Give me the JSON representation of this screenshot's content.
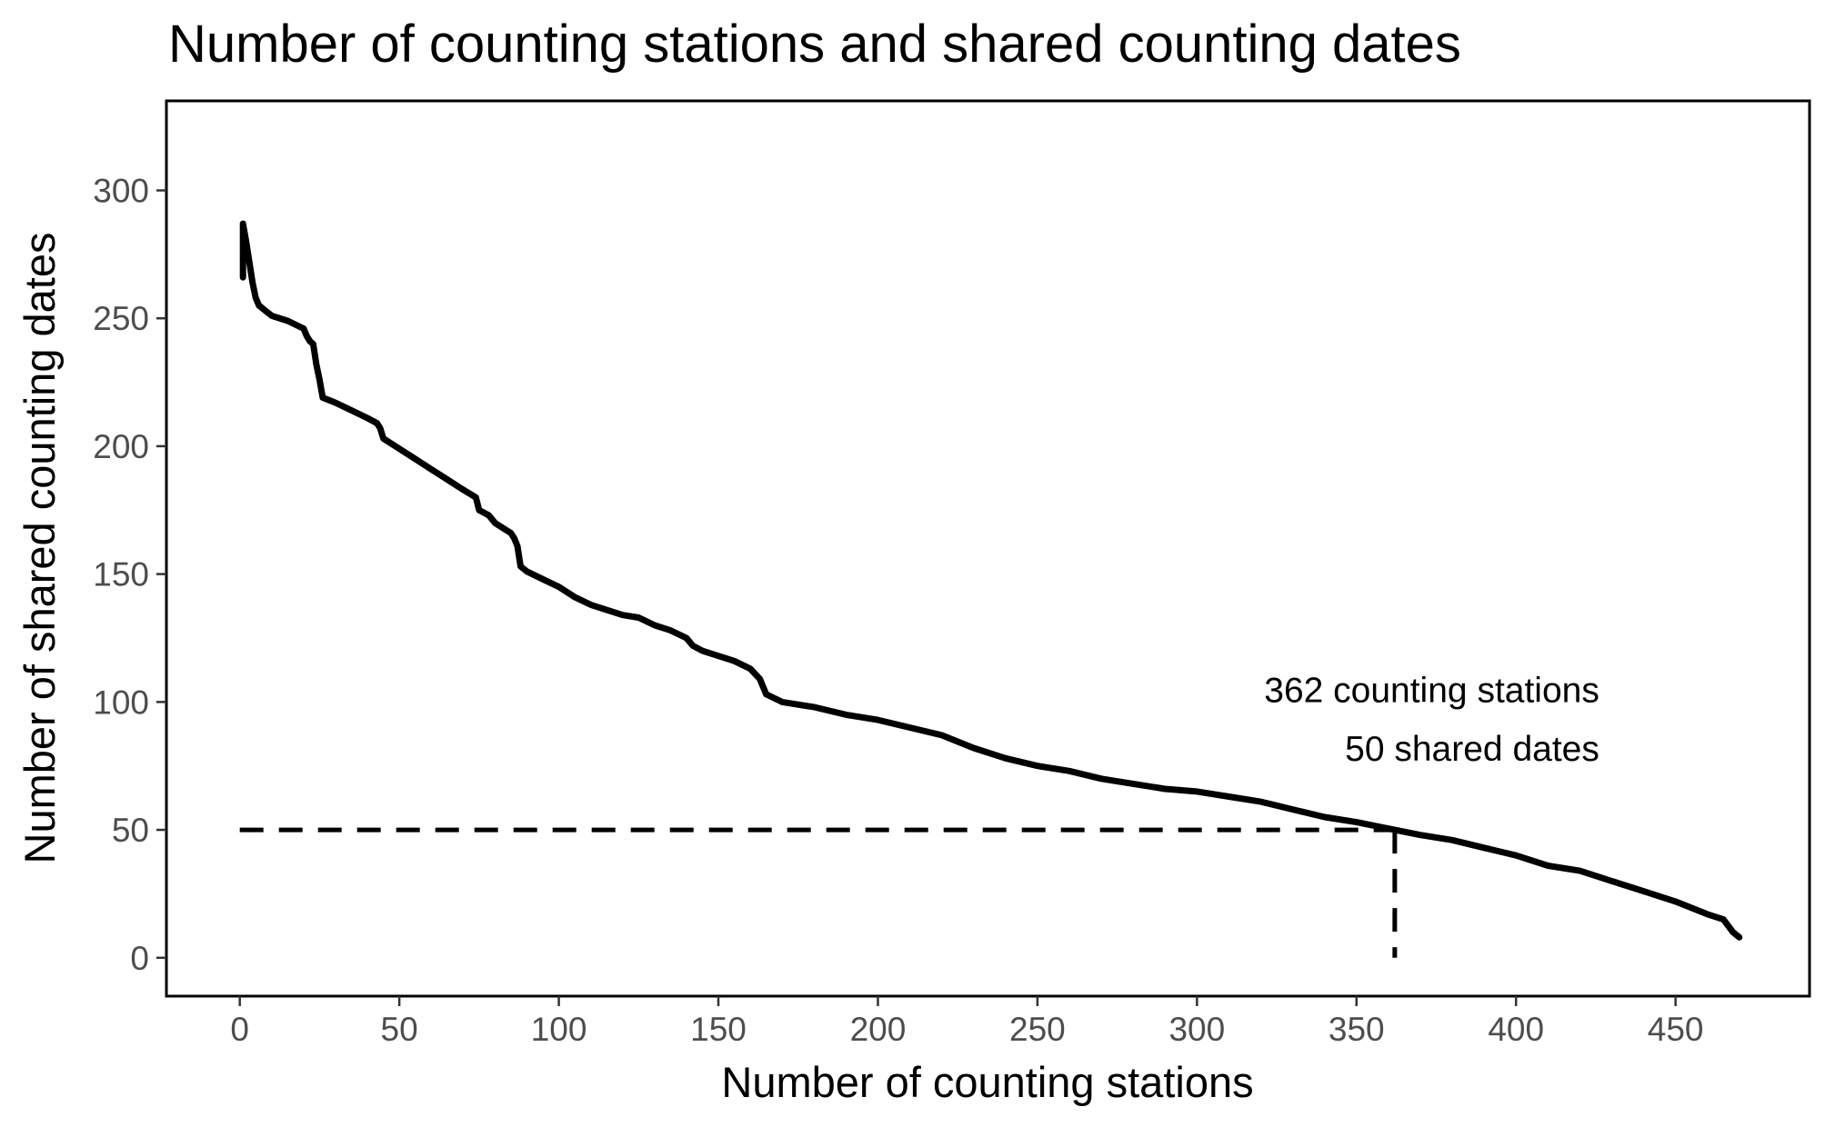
{
  "chart_data": {
    "type": "line",
    "title": "Number of counting stations and shared counting dates",
    "xlabel": "Number of counting stations",
    "ylabel": "Number of shared counting dates",
    "xlim": [
      -23,
      492
    ],
    "ylim": [
      -15,
      335
    ],
    "x_ticks": [
      0,
      50,
      100,
      150,
      200,
      250,
      300,
      350,
      400,
      450
    ],
    "y_ticks": [
      0,
      50,
      100,
      150,
      200,
      250,
      300
    ],
    "grid": false,
    "legend": "none",
    "colors": {
      "line": "#000000",
      "axis": "#000000",
      "tick_label": "#4d4d4d"
    },
    "series": [
      {
        "points": [
          [
            1,
            266
          ],
          [
            1,
            287
          ],
          [
            2,
            280
          ],
          [
            3,
            272
          ],
          [
            4,
            264
          ],
          [
            5,
            258
          ],
          [
            6,
            255
          ],
          [
            8,
            253
          ],
          [
            10,
            251
          ],
          [
            15,
            249
          ],
          [
            20,
            246
          ],
          [
            21,
            243
          ],
          [
            22,
            241
          ],
          [
            23,
            240
          ],
          [
            24,
            232
          ],
          [
            25,
            226
          ],
          [
            26,
            219
          ],
          [
            30,
            217
          ],
          [
            35,
            214
          ],
          [
            40,
            211
          ],
          [
            43,
            209
          ],
          [
            44,
            207
          ],
          [
            45,
            203
          ],
          [
            50,
            199
          ],
          [
            55,
            195
          ],
          [
            60,
            191
          ],
          [
            65,
            187
          ],
          [
            70,
            183
          ],
          [
            74,
            180
          ],
          [
            75,
            175
          ],
          [
            78,
            173
          ],
          [
            80,
            170
          ],
          [
            85,
            166
          ],
          [
            86,
            164
          ],
          [
            87,
            161
          ],
          [
            88,
            153
          ],
          [
            90,
            151
          ],
          [
            95,
            148
          ],
          [
            100,
            145
          ],
          [
            105,
            141
          ],
          [
            110,
            138
          ],
          [
            120,
            134
          ],
          [
            125,
            133
          ],
          [
            130,
            130
          ],
          [
            135,
            128
          ],
          [
            140,
            125
          ],
          [
            142,
            122
          ],
          [
            145,
            120
          ],
          [
            150,
            118
          ],
          [
            155,
            116
          ],
          [
            160,
            113
          ],
          [
            163,
            109
          ],
          [
            165,
            103
          ],
          [
            170,
            100
          ],
          [
            180,
            98
          ],
          [
            190,
            95
          ],
          [
            200,
            93
          ],
          [
            210,
            90
          ],
          [
            220,
            87
          ],
          [
            230,
            82
          ],
          [
            240,
            78
          ],
          [
            250,
            75
          ],
          [
            260,
            73
          ],
          [
            270,
            70
          ],
          [
            280,
            68
          ],
          [
            290,
            66
          ],
          [
            300,
            65
          ],
          [
            310,
            63
          ],
          [
            320,
            61
          ],
          [
            330,
            58
          ],
          [
            340,
            55
          ],
          [
            350,
            53
          ],
          [
            362,
            50
          ],
          [
            370,
            48
          ],
          [
            380,
            46
          ],
          [
            390,
            43
          ],
          [
            400,
            40
          ],
          [
            410,
            36
          ],
          [
            420,
            34
          ],
          [
            430,
            30
          ],
          [
            440,
            26
          ],
          [
            450,
            22
          ],
          [
            460,
            17
          ],
          [
            465,
            15
          ],
          [
            468,
            10
          ],
          [
            470,
            8
          ]
        ]
      }
    ],
    "reference_lines": [
      {
        "style": "dashed",
        "from": [
          0,
          50
        ],
        "to": [
          362,
          50
        ]
      },
      {
        "style": "dashed",
        "from": [
          362,
          50
        ],
        "to": [
          362,
          0
        ]
      }
    ],
    "annotations": [
      {
        "text": "362 counting stations",
        "x": 362,
        "y": 105
      },
      {
        "text": "50 shared dates",
        "x": 362,
        "y": 82
      }
    ]
  }
}
